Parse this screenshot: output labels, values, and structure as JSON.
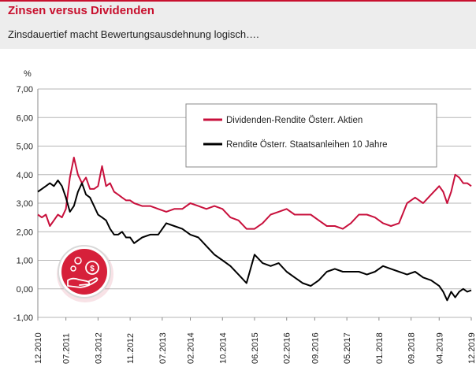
{
  "header": {
    "title": "Zinsen versus Dividenden",
    "subtitle": "Zinsdauertief macht Bewertungsausdehnung logisch…."
  },
  "colors": {
    "accent": "#c8102e",
    "series_dividend": "#c8103c",
    "series_yield": "#000000"
  },
  "logo_icon": "hand-with-coins-icon",
  "chart_data": {
    "type": "line",
    "title": "Zinsen versus Dividenden",
    "subtitle": "Zinsdauertief macht Bewertungsausdehnung logisch….",
    "ylabel": "%",
    "xlabel": "",
    "ylim": [
      -1.0,
      7.0
    ],
    "yticks": [
      "-1,00",
      "0,00",
      "1,00",
      "2,00",
      "3,00",
      "4,00",
      "5,00",
      "6,00",
      "7,00"
    ],
    "xlim": [
      "2010-12",
      "2019-12"
    ],
    "xticks": [
      "12.2010",
      "07.2011",
      "03.2012",
      "11.2012",
      "07.2013",
      "02.2014",
      "10.2014",
      "06.2015",
      "02.2016",
      "09.2016",
      "05.2017",
      "01.2018",
      "09.2018",
      "04.2019",
      "12.2019"
    ],
    "grid": "horizontal",
    "legend_position": "top-right",
    "series": [
      {
        "name": "Dividenden-Rendite Österr. Aktien",
        "color": "#c8103c",
        "x": [
          "2010-12",
          "2011-01",
          "2011-02",
          "2011-03",
          "2011-04",
          "2011-05",
          "2011-06",
          "2011-07",
          "2011-08",
          "2011-09",
          "2011-10",
          "2011-11",
          "2011-12",
          "2012-01",
          "2012-02",
          "2012-03",
          "2012-04",
          "2012-05",
          "2012-06",
          "2012-07",
          "2012-08",
          "2012-09",
          "2012-10",
          "2012-11",
          "2012-12",
          "2013-02",
          "2013-04",
          "2013-06",
          "2013-08",
          "2013-10",
          "2013-12",
          "2014-02",
          "2014-04",
          "2014-06",
          "2014-08",
          "2014-10",
          "2014-12",
          "2015-02",
          "2015-04",
          "2015-06",
          "2015-08",
          "2015-10",
          "2015-12",
          "2016-02",
          "2016-04",
          "2016-06",
          "2016-08",
          "2016-10",
          "2016-12",
          "2017-02",
          "2017-04",
          "2017-06",
          "2017-08",
          "2017-10",
          "2017-12",
          "2018-02",
          "2018-04",
          "2018-06",
          "2018-08",
          "2018-10",
          "2018-12",
          "2019-02",
          "2019-04",
          "2019-05",
          "2019-06",
          "2019-07",
          "2019-08",
          "2019-09",
          "2019-10",
          "2019-11",
          "2019-12"
        ],
        "values": [
          2.6,
          2.5,
          2.6,
          2.2,
          2.4,
          2.6,
          2.5,
          2.8,
          3.9,
          4.6,
          4.0,
          3.7,
          3.9,
          3.5,
          3.5,
          3.6,
          4.3,
          3.6,
          3.7,
          3.4,
          3.3,
          3.2,
          3.1,
          3.1,
          3.0,
          2.9,
          2.9,
          2.8,
          2.7,
          2.8,
          2.8,
          3.0,
          2.9,
          2.8,
          2.9,
          2.8,
          2.5,
          2.4,
          2.1,
          2.1,
          2.3,
          2.6,
          2.7,
          2.8,
          2.6,
          2.6,
          2.6,
          2.4,
          2.2,
          2.2,
          2.1,
          2.3,
          2.6,
          2.6,
          2.5,
          2.3,
          2.2,
          2.3,
          3.0,
          3.2,
          3.0,
          3.3,
          3.6,
          3.4,
          3.0,
          3.4,
          4.0,
          3.9,
          3.7,
          3.7,
          3.6
        ]
      },
      {
        "name": "Rendite Österr. Staatsanleihen 10 Jahre",
        "color": "#000000",
        "x": [
          "2010-12",
          "2011-01",
          "2011-02",
          "2011-03",
          "2011-04",
          "2011-05",
          "2011-06",
          "2011-07",
          "2011-08",
          "2011-09",
          "2011-10",
          "2011-11",
          "2011-12",
          "2012-01",
          "2012-02",
          "2012-03",
          "2012-04",
          "2012-05",
          "2012-06",
          "2012-07",
          "2012-08",
          "2012-09",
          "2012-10",
          "2012-11",
          "2012-12",
          "2013-02",
          "2013-04",
          "2013-06",
          "2013-08",
          "2013-10",
          "2013-12",
          "2014-02",
          "2014-04",
          "2014-06",
          "2014-08",
          "2014-10",
          "2014-12",
          "2015-02",
          "2015-04",
          "2015-06",
          "2015-08",
          "2015-10",
          "2015-12",
          "2016-02",
          "2016-04",
          "2016-06",
          "2016-08",
          "2016-10",
          "2016-12",
          "2017-02",
          "2017-04",
          "2017-06",
          "2017-08",
          "2017-10",
          "2017-12",
          "2018-02",
          "2018-04",
          "2018-06",
          "2018-08",
          "2018-10",
          "2018-12",
          "2019-02",
          "2019-04",
          "2019-05",
          "2019-06",
          "2019-07",
          "2019-08",
          "2019-09",
          "2019-10",
          "2019-11",
          "2019-12"
        ],
        "values": [
          3.4,
          3.5,
          3.6,
          3.7,
          3.6,
          3.8,
          3.6,
          3.2,
          2.7,
          2.9,
          3.4,
          3.7,
          3.3,
          3.2,
          2.9,
          2.6,
          2.5,
          2.4,
          2.1,
          1.9,
          1.9,
          2.0,
          1.8,
          1.8,
          1.6,
          1.8,
          1.9,
          1.9,
          2.3,
          2.2,
          2.1,
          1.9,
          1.8,
          1.5,
          1.2,
          1.0,
          0.8,
          0.5,
          0.2,
          1.2,
          0.9,
          0.8,
          0.9,
          0.6,
          0.4,
          0.2,
          0.1,
          0.3,
          0.6,
          0.7,
          0.6,
          0.6,
          0.6,
          0.5,
          0.6,
          0.8,
          0.7,
          0.6,
          0.5,
          0.6,
          0.4,
          0.3,
          0.1,
          -0.1,
          -0.4,
          -0.1,
          -0.3,
          -0.1,
          0.0,
          -0.1,
          -0.05
        ]
      }
    ]
  }
}
